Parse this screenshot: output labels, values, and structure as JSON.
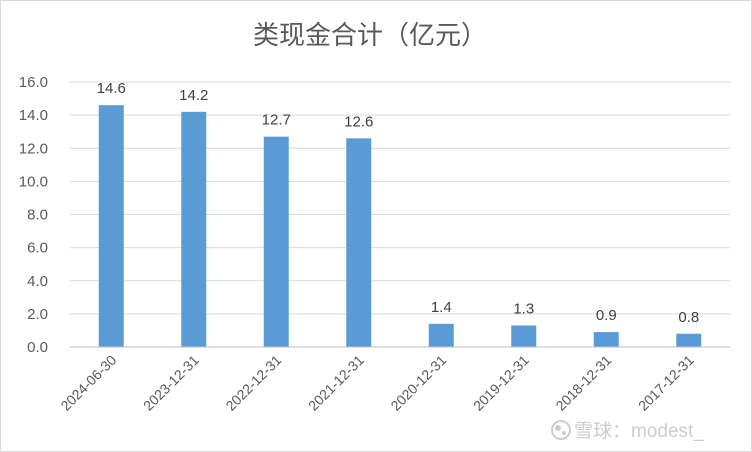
{
  "chart_data": {
    "type": "bar",
    "title": "类现金合计（亿元）",
    "categories": [
      "2024-06-30",
      "2023-12-31",
      "2022-12-31",
      "2021-12-31",
      "2020-12-31",
      "2019-12-31",
      "2018-12-31",
      "2017-12-31"
    ],
    "values": [
      14.6,
      14.2,
      12.7,
      12.6,
      1.4,
      1.3,
      0.9,
      0.8
    ],
    "data_labels": [
      "14.6",
      "14.2",
      "12.7",
      "12.6",
      "1.4",
      "1.3",
      "0.9",
      "0.8"
    ],
    "xlabel": "",
    "ylabel": "",
    "ylim": [
      0,
      16
    ],
    "yticks": [
      "0.0",
      "2.0",
      "4.0",
      "6.0",
      "8.0",
      "10.0",
      "12.0",
      "14.0",
      "16.0"
    ],
    "grid": true,
    "legend": "none",
    "bar_color": "#5b9bd5",
    "grid_color": "#d9d9d9"
  },
  "watermark": {
    "icon": "xueqiu-logo-icon",
    "text": "雪球：modest_"
  }
}
